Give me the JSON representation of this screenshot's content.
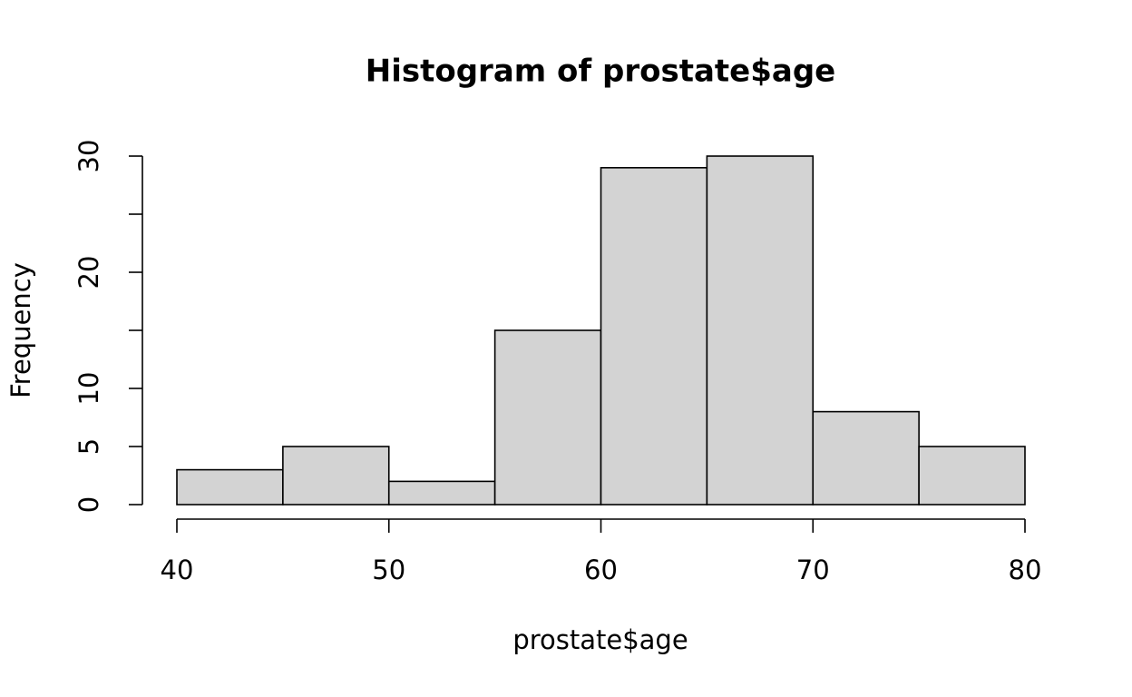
{
  "chart_data": {
    "type": "histogram",
    "title": "Histogram of prostate$age",
    "x_label": "prostate$age",
    "y_label": "Frequency",
    "bins": [
      40,
      45,
      50,
      55,
      60,
      65,
      70,
      75,
      80
    ],
    "counts": [
      3,
      5,
      2,
      15,
      29,
      30,
      8,
      5
    ],
    "color": "#d3d3d3",
    "xlim": [
      40,
      80
    ],
    "xticks": [
      40,
      50,
      60,
      70,
      80
    ],
    "ylim": [
      0,
      30
    ],
    "yticks": [
      0,
      5,
      10,
      {
        "value": 15,
        "label": null
      },
      20,
      {
        "value": 25,
        "label": null
      },
      30
    ]
  }
}
